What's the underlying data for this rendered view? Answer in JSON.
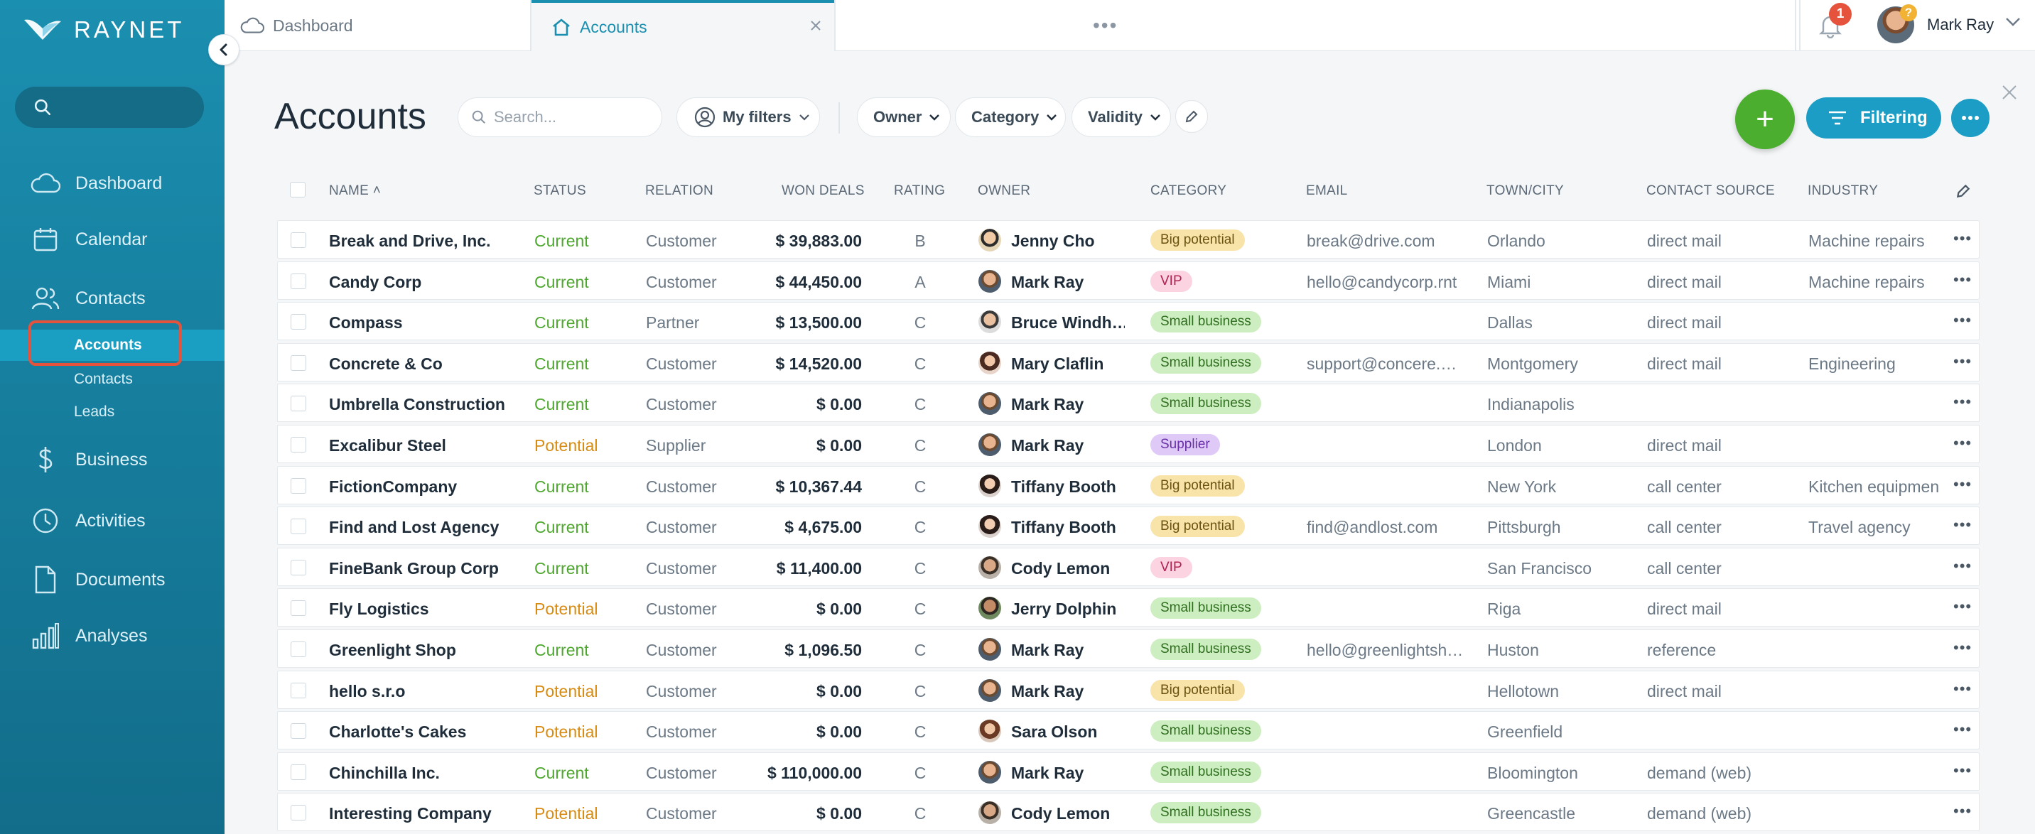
{
  "app": {
    "brand": "RAYNET"
  },
  "sidebar": {
    "search_placeholder": "",
    "nav": [
      {
        "label": "Dashboard",
        "icon": "cloud-icon"
      },
      {
        "label": "Calendar",
        "icon": "calendar-icon"
      },
      {
        "label": "Contacts",
        "icon": "contacts-icon"
      },
      {
        "label": "Business",
        "icon": "dollar-icon"
      },
      {
        "label": "Activities",
        "icon": "clock-icon"
      },
      {
        "label": "Documents",
        "icon": "document-icon"
      },
      {
        "label": "Analyses",
        "icon": "bar-chart-icon"
      }
    ],
    "subnav": [
      {
        "label": "Accounts",
        "active": true
      },
      {
        "label": "Contacts",
        "active": false
      },
      {
        "label": "Leads",
        "active": false
      }
    ]
  },
  "topbar": {
    "tabs": [
      {
        "label": "Dashboard",
        "icon": "cloud-icon"
      },
      {
        "label": "Accounts",
        "icon": "home-icon",
        "active": true
      }
    ],
    "notification_count": "1",
    "user_name": "Mark Ray",
    "help_badge": "?"
  },
  "toolbar": {
    "title": "Accounts",
    "search_placeholder": "Search...",
    "my_filters": "My filters",
    "filters": [
      "Owner",
      "Category",
      "Validity"
    ],
    "add_label": "+",
    "filtering_label": "Filtering"
  },
  "table": {
    "columns": [
      "NAME",
      "STATUS",
      "RELATION",
      "WON DEALS",
      "RATING",
      "OWNER",
      "CATEGORY",
      "EMAIL",
      "TOWN/CITY",
      "CONTACT SOURCE",
      "INDUSTRY"
    ],
    "rows": [
      {
        "name": "Break and Drive, Inc.",
        "status": "Current",
        "relation": "Customer",
        "won": "$ 39,883.00",
        "rating": "B",
        "owner": "Jenny Cho",
        "category": "Big potential",
        "email": "break@drive.com",
        "city": "Orlando",
        "source": "direct mail",
        "industry": "Machine repairs"
      },
      {
        "name": "Candy Corp",
        "status": "Current",
        "relation": "Customer",
        "won": "$ 44,450.00",
        "rating": "A",
        "owner": "Mark Ray",
        "category": "VIP",
        "email": "hello@candycorp.rnt",
        "city": "Miami",
        "source": "direct mail",
        "industry": "Machine repairs"
      },
      {
        "name": "Compass",
        "status": "Current",
        "relation": "Partner",
        "won": "$ 13,500.00",
        "rating": "C",
        "owner": "Bruce Windh…",
        "category": "Small business",
        "email": "",
        "city": "Dallas",
        "source": "direct mail",
        "industry": ""
      },
      {
        "name": "Concrete & Co",
        "status": "Current",
        "relation": "Customer",
        "won": "$ 14,520.00",
        "rating": "C",
        "owner": "Mary Claflin",
        "category": "Small business",
        "email": "support@concere.…",
        "city": "Montgomery",
        "source": "direct mail",
        "industry": "Engineering"
      },
      {
        "name": "Umbrella Construction",
        "status": "Current",
        "relation": "Customer",
        "won": "$ 0.00",
        "rating": "C",
        "owner": "Mark Ray",
        "category": "Small business",
        "email": "",
        "city": "Indianapolis",
        "source": "",
        "industry": ""
      },
      {
        "name": "Excalibur Steel",
        "status": "Potential",
        "relation": "Supplier",
        "won": "$ 0.00",
        "rating": "C",
        "owner": "Mark Ray",
        "category": "Supplier",
        "email": "",
        "city": "London",
        "source": "direct mail",
        "industry": ""
      },
      {
        "name": "FictionCompany",
        "status": "Current",
        "relation": "Customer",
        "won": "$ 10,367.44",
        "rating": "C",
        "owner": "Tiffany Booth",
        "category": "Big potential",
        "email": "",
        "city": "New York",
        "source": "call center",
        "industry": "Kitchen equipmen"
      },
      {
        "name": "Find and Lost Agency",
        "status": "Current",
        "relation": "Customer",
        "won": "$ 4,675.00",
        "rating": "C",
        "owner": "Tiffany Booth",
        "category": "Big potential",
        "email": "find@andlost.com",
        "city": "Pittsburgh",
        "source": "call center",
        "industry": "Travel agency"
      },
      {
        "name": "FineBank Group Corp",
        "status": "Current",
        "relation": "Customer",
        "won": "$ 11,400.00",
        "rating": "C",
        "owner": "Cody Lemon",
        "category": "VIP",
        "email": "",
        "city": "San Francisco",
        "source": "call center",
        "industry": ""
      },
      {
        "name": "Fly Logistics",
        "status": "Potential",
        "relation": "Customer",
        "won": "$ 0.00",
        "rating": "C",
        "owner": "Jerry Dolphin",
        "category": "Small business",
        "email": "",
        "city": "Riga",
        "source": "direct mail",
        "industry": ""
      },
      {
        "name": "Greenlight Shop",
        "status": "Current",
        "relation": "Customer",
        "won": "$ 1,096.50",
        "rating": "C",
        "owner": "Mark Ray",
        "category": "Small business",
        "email": "hello@greenlightsh…",
        "city": "Huston",
        "source": "reference",
        "industry": ""
      },
      {
        "name": "hello s.r.o",
        "status": "Potential",
        "relation": "Customer",
        "won": "$ 0.00",
        "rating": "C",
        "owner": "Mark Ray",
        "category": "Big potential",
        "email": "",
        "city": "Hellotown",
        "source": "direct mail",
        "industry": ""
      },
      {
        "name": "Charlotte's Cakes",
        "status": "Potential",
        "relation": "Customer",
        "won": "$ 0.00",
        "rating": "C",
        "owner": "Sara Olson",
        "category": "Small business",
        "email": "",
        "city": "Greenfield",
        "source": "",
        "industry": ""
      },
      {
        "name": "Chinchilla Inc.",
        "status": "Current",
        "relation": "Customer",
        "won": "$ 110,000.00",
        "rating": "C",
        "owner": "Mark Ray",
        "category": "Small business",
        "email": "",
        "city": "Bloomington",
        "source": "demand (web)",
        "industry": ""
      },
      {
        "name": "Interesting Company",
        "status": "Potential",
        "relation": "Customer",
        "won": "$ 0.00",
        "rating": "C",
        "owner": "Cody Lemon",
        "category": "Small business",
        "email": "",
        "city": "Greencastle",
        "source": "demand (web)",
        "industry": ""
      }
    ]
  },
  "colors": {
    "sidebar": "#1b8fb0",
    "accent": "#1b9dc5",
    "add_button": "#4cae2f",
    "highlight": "#e5533d",
    "current": "#4ea72e",
    "potential": "#d88b12",
    "badge_big_potential": "#f8e3a9",
    "badge_vip": "#fbd3e1",
    "badge_small_business": "#cdeec0",
    "badge_supplier": "#dfc9f7"
  }
}
